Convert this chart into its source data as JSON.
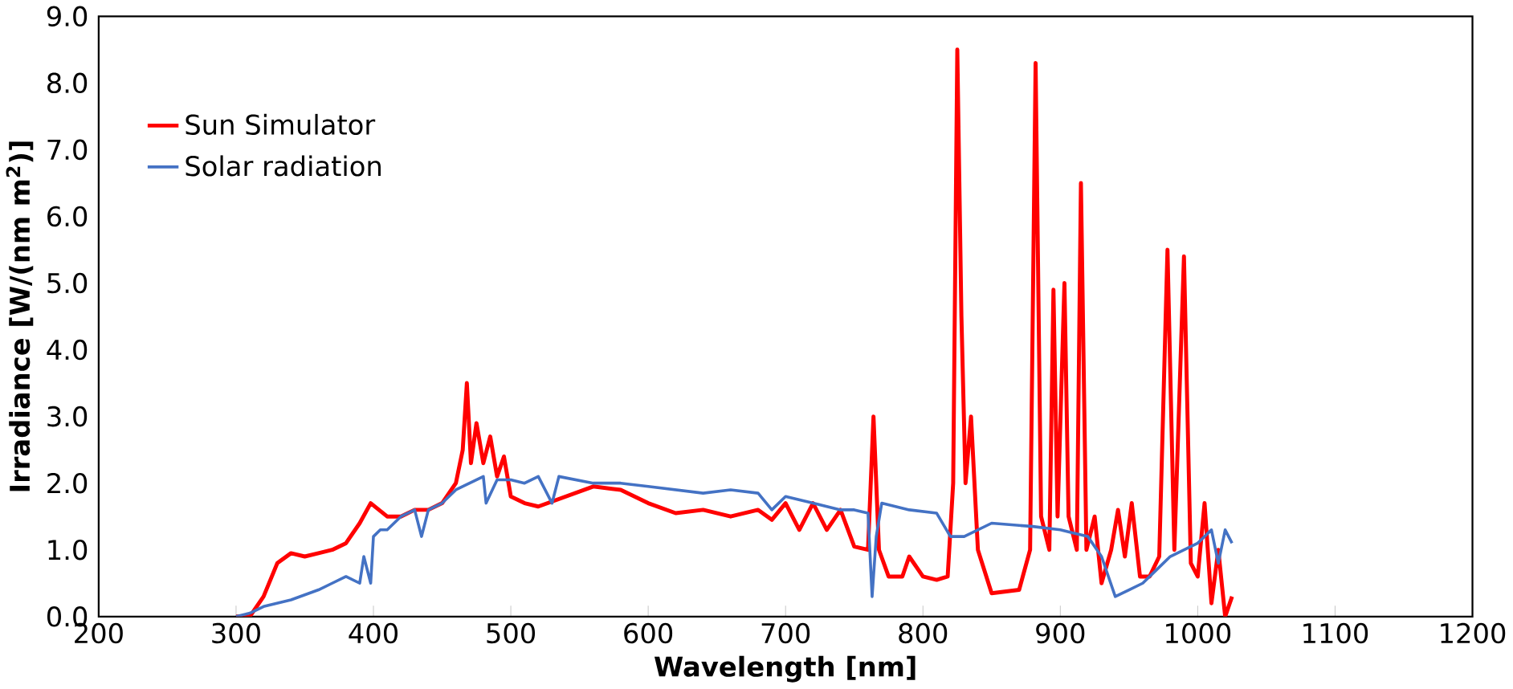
{
  "chart_data": {
    "type": "line",
    "xlabel": "Wavelength [nm]",
    "ylabel": "Irradiance [W/(nm m$^{2}$)]",
    "xlim": [
      200,
      1200
    ],
    "ylim": [
      0,
      9
    ],
    "xticks": [
      200,
      300,
      400,
      500,
      600,
      700,
      800,
      900,
      1000,
      1100,
      1200
    ],
    "yticks": [
      {
        "value": 0,
        "label": "0.0"
      },
      {
        "value": 1,
        "label": "1.0"
      },
      {
        "value": 2,
        "label": "2.0"
      },
      {
        "value": 3,
        "label": "3.0"
      },
      {
        "value": 4,
        "label": "4.0"
      },
      {
        "value": 5,
        "label": "5.0"
      },
      {
        "value": 6,
        "label": "6.0"
      },
      {
        "value": 7,
        "label": "7.0"
      },
      {
        "value": 8,
        "label": "8.0"
      },
      {
        "value": 9,
        "label": "9.0"
      }
    ],
    "grid": false,
    "legend": "top left",
    "marker": "none",
    "line_style": "solid",
    "series": [
      {
        "name": "Sun Simulator",
        "color": "#ff0000",
        "x": [
          300,
          310,
          320,
          330,
          340,
          350,
          360,
          370,
          380,
          390,
          398,
          410,
          420,
          430,
          440,
          450,
          460,
          465,
          468,
          471,
          475,
          480,
          485,
          490,
          495,
          500,
          510,
          520,
          540,
          560,
          580,
          600,
          620,
          640,
          660,
          680,
          690,
          700,
          710,
          720,
          730,
          740,
          750,
          760,
          764,
          768,
          775,
          785,
          790,
          800,
          810,
          818,
          822,
          825,
          828,
          831,
          835,
          840,
          850,
          870,
          878,
          882,
          886,
          892,
          895,
          898,
          903,
          906,
          912,
          915,
          919,
          925,
          930,
          937,
          942,
          947,
          952,
          958,
          965,
          972,
          978,
          983,
          990,
          995,
          1000,
          1005,
          1010,
          1015,
          1020,
          1025
        ],
        "values": [
          0,
          0,
          0.3,
          0.8,
          0.95,
          0.9,
          0.95,
          1.0,
          1.1,
          1.4,
          1.7,
          1.5,
          1.5,
          1.6,
          1.6,
          1.7,
          2.0,
          2.5,
          3.5,
          2.3,
          2.9,
          2.3,
          2.7,
          2.1,
          2.4,
          1.8,
          1.7,
          1.65,
          1.8,
          1.95,
          1.9,
          1.7,
          1.55,
          1.6,
          1.5,
          1.6,
          1.45,
          1.7,
          1.3,
          1.7,
          1.3,
          1.6,
          1.05,
          1.0,
          3.0,
          1.0,
          0.6,
          0.6,
          0.9,
          0.6,
          0.55,
          0.6,
          2.0,
          8.5,
          4.5,
          2.0,
          3.0,
          1.0,
          0.35,
          0.4,
          1.0,
          8.3,
          1.5,
          1.0,
          4.9,
          1.5,
          5.0,
          1.5,
          1.0,
          6.5,
          1.0,
          1.5,
          0.5,
          1.0,
          1.6,
          0.9,
          1.7,
          0.6,
          0.6,
          0.9,
          5.5,
          1.0,
          5.4,
          0.8,
          0.6,
          1.7,
          0.2,
          1.0,
          0.0,
          0.3
        ]
      },
      {
        "name": "Solar radiation",
        "color": "#4472c4",
        "x": [
          300,
          310,
          320,
          340,
          360,
          370,
          380,
          390,
          393,
          398,
          400,
          405,
          410,
          420,
          430,
          435,
          440,
          450,
          460,
          470,
          480,
          482,
          490,
          500,
          510,
          520,
          530,
          535,
          560,
          580,
          600,
          620,
          640,
          660,
          680,
          690,
          700,
          720,
          740,
          750,
          760,
          763,
          766,
          770,
          790,
          810,
          820,
          830,
          850,
          880,
          900,
          910,
          920,
          930,
          940,
          950,
          960,
          970,
          980,
          990,
          1000,
          1010,
          1015,
          1020,
          1025
        ],
        "values": [
          0,
          0.05,
          0.15,
          0.25,
          0.4,
          0.5,
          0.6,
          0.5,
          0.9,
          0.5,
          1.2,
          1.3,
          1.3,
          1.5,
          1.6,
          1.2,
          1.6,
          1.7,
          1.9,
          2.0,
          2.1,
          1.7,
          2.05,
          2.05,
          2.0,
          2.1,
          1.7,
          2.1,
          2.0,
          2.0,
          1.95,
          1.9,
          1.85,
          1.9,
          1.85,
          1.6,
          1.8,
          1.7,
          1.6,
          1.6,
          1.55,
          0.3,
          1.2,
          1.7,
          1.6,
          1.55,
          1.2,
          1.2,
          1.4,
          1.35,
          1.3,
          1.25,
          1.2,
          0.9,
          0.3,
          0.4,
          0.5,
          0.7,
          0.9,
          1.0,
          1.1,
          1.3,
          0.8,
          1.3,
          1.1
        ]
      }
    ]
  }
}
